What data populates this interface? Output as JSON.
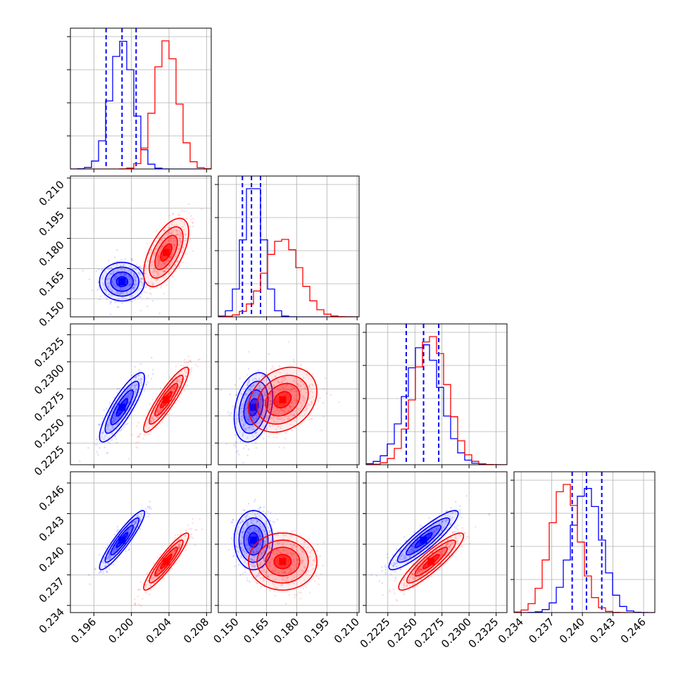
{
  "chart_data": {
    "type": "corner",
    "grid": true,
    "parameters": [
      {
        "range": [
          0.1935,
          0.2085
        ],
        "ticks": [
          "0.196",
          "0.200",
          "0.204",
          "0.208"
        ]
      },
      {
        "range": [
          0.141,
          0.211
        ],
        "ticks": [
          "0.150",
          "0.165",
          "0.180",
          "0.195",
          "0.210"
        ]
      },
      {
        "range": [
          0.2205,
          0.2335
        ],
        "ticks": [
          "0.2225",
          "0.2250",
          "0.2275",
          "0.2300",
          "0.2325"
        ]
      },
      {
        "range": [
          0.2333,
          0.2471
        ],
        "ticks": [
          "0.234",
          "0.237",
          "0.240",
          "0.243",
          "0.246"
        ]
      }
    ],
    "series": [
      {
        "color": "#0000ff",
        "mean": [
          0.199,
          0.1585,
          0.2258,
          0.2404
        ],
        "std": [
          0.0012,
          0.0048,
          0.0016,
          0.00145
        ],
        "quantiles_16_50_84": [
          [
            0.1973,
            0.199,
            0.2005
          ],
          [
            0.153,
            0.1575,
            0.162
          ],
          [
            0.2242,
            0.2258,
            0.2272
          ],
          [
            0.239,
            0.2404,
            0.2419
          ]
        ],
        "correlations": [
          [
            0,
            1,
            0.0
          ],
          [
            0,
            2,
            0.85
          ],
          [
            0,
            3,
            0.92
          ],
          [
            1,
            2,
            0.3
          ],
          [
            1,
            3,
            0.0
          ],
          [
            2,
            3,
            0.9
          ]
        ]
      },
      {
        "color": "#ff0000",
        "mean": [
          0.2037,
          0.173,
          0.2265,
          0.2383
        ],
        "std": [
          0.0012,
          0.0085,
          0.0015,
          0.0014
        ],
        "correlations": [
          [
            0,
            1,
            0.6
          ],
          [
            0,
            2,
            0.9
          ],
          [
            0,
            3,
            0.92
          ],
          [
            1,
            2,
            0.25
          ],
          [
            1,
            3,
            0.0
          ],
          [
            2,
            3,
            0.9
          ]
        ]
      }
    ]
  }
}
